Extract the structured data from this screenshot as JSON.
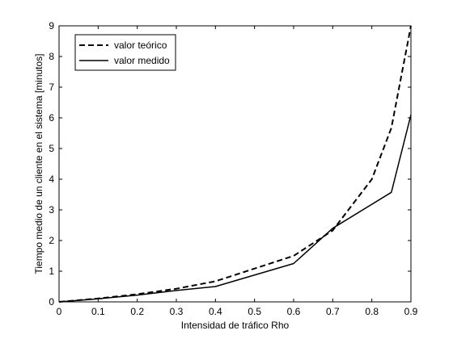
{
  "chart_data": {
    "type": "line",
    "xlabel": "Intensidad de tráfico Rho",
    "ylabel": "Tiempo medio de un cliente en el sistema [minutos]",
    "xlim": [
      0,
      0.9
    ],
    "ylim": [
      0,
      9
    ],
    "xticks": [
      "0",
      "0.1",
      "0.2",
      "0.3",
      "0.4",
      "0.5",
      "0.6",
      "0.7",
      "0.8",
      "0.9"
    ],
    "yticks": [
      "0",
      "1",
      "2",
      "3",
      "4",
      "5",
      "6",
      "7",
      "8",
      "9"
    ],
    "grid": false,
    "legend_position": "top-left",
    "series": [
      {
        "name": "valor teórico",
        "line_style": "dashed",
        "color": "#000000",
        "x": [
          0.0,
          0.1,
          0.2,
          0.3,
          0.4,
          0.6,
          0.7,
          0.8,
          0.85,
          0.9
        ],
        "y": [
          0.0,
          0.11,
          0.25,
          0.43,
          0.67,
          1.5,
          2.33,
          4.0,
          5.67,
          9.0
        ]
      },
      {
        "name": "valor medido",
        "line_style": "solid",
        "color": "#000000",
        "x": [
          0.0,
          0.1,
          0.2,
          0.3,
          0.4,
          0.6,
          0.7,
          0.85,
          0.9
        ],
        "y": [
          0.0,
          0.1,
          0.22,
          0.37,
          0.5,
          1.25,
          2.4,
          3.57,
          6.1
        ]
      }
    ]
  }
}
